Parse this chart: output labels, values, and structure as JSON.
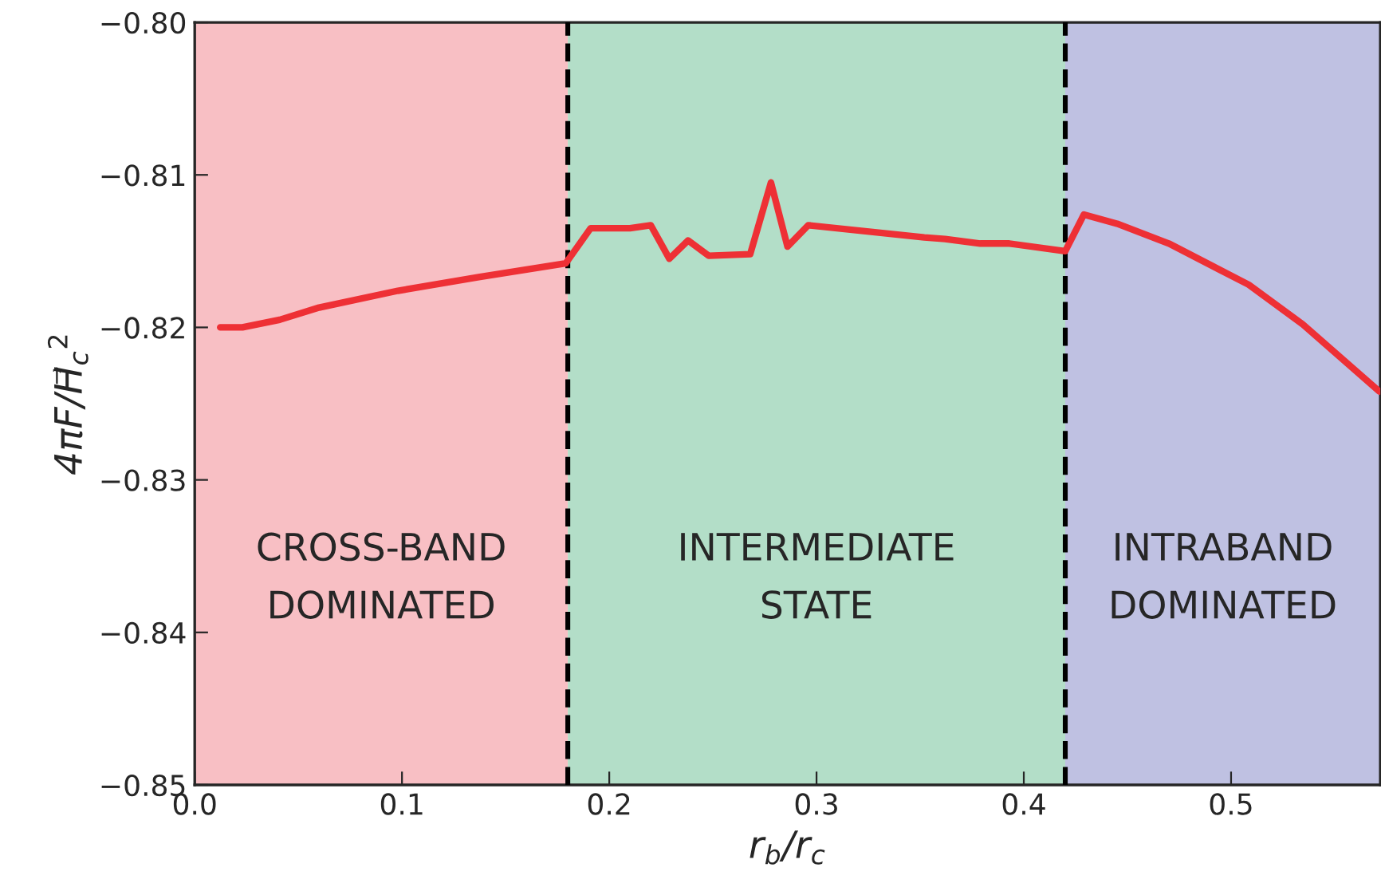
{
  "chart_data": {
    "type": "line",
    "xlabel": "r$_{b}$/r$_{c}$",
    "ylabel": "4πF/H⃗$_{c}$$^{2}$",
    "x": [
      0.0123,
      0.023,
      0.041,
      0.06,
      0.098,
      0.137,
      0.179,
      0.191,
      0.21,
      0.22,
      0.229,
      0.238,
      0.248,
      0.268,
      0.278,
      0.286,
      0.296,
      0.352,
      0.362,
      0.379,
      0.393,
      0.42,
      0.429,
      0.445,
      0.47,
      0.5085,
      0.5346,
      0.5715
    ],
    "series": [
      {
        "color": "#ee3035",
        "values": [
          -0.82,
          -0.82,
          -0.8195,
          -0.8187,
          -0.8176,
          -0.8167,
          -0.8158,
          -0.8135,
          -0.8135,
          -0.8133,
          -0.8155,
          -0.8143,
          -0.8153,
          -0.8152,
          -0.8105,
          -0.8147,
          -0.8133,
          -0.8141,
          -0.8142,
          -0.8145,
          -0.8145,
          -0.815,
          -0.8126,
          -0.8132,
          -0.8145,
          -0.8172,
          -0.8198,
          -0.8242
        ]
      }
    ],
    "xlim": [
      0.0,
      0.572
    ],
    "ylim": [
      -0.85,
      -0.8
    ],
    "xticks": [
      {
        "value": 0.0,
        "label": "0.0"
      },
      0.1,
      0.2,
      0.3,
      0.4,
      0.5
    ],
    "yticks": [
      {
        "value": -0.85,
        "label": "−0.85"
      },
      {
        "value": -0.84,
        "label": "−0.84"
      },
      {
        "value": -0.83,
        "label": "−0.83"
      },
      {
        "value": -0.82,
        "label": "−0.82"
      },
      {
        "value": -0.81,
        "label": "−0.81"
      },
      {
        "value": -0.8,
        "label": "−0.80"
      }
    ],
    "bands": [
      {
        "axis": "x",
        "from": 0.0,
        "to": 0.18,
        "label": "CROSS-BAND\nDOMINATED",
        "color": "#f8bfc4"
      },
      {
        "axis": "x",
        "from": 0.18,
        "to": 0.42,
        "label": "INTERMEDIATE\nSTATE",
        "color": "#b3dec8"
      },
      {
        "axis": "x",
        "from": 0.42,
        "to": 0.572,
        "label": "INTRABAND\nDOMINATED",
        "color": "#bfc1e2"
      }
    ],
    "ref_lines": [
      {
        "axis": "x",
        "value": 0.18,
        "color": "#000000",
        "line_style": "dashed"
      },
      {
        "axis": "x",
        "value": 0.42,
        "color": "#000000",
        "line_style": "dashed"
      }
    ],
    "grid": false,
    "legend": false,
    "marker": "none",
    "line_style": "solid"
  }
}
